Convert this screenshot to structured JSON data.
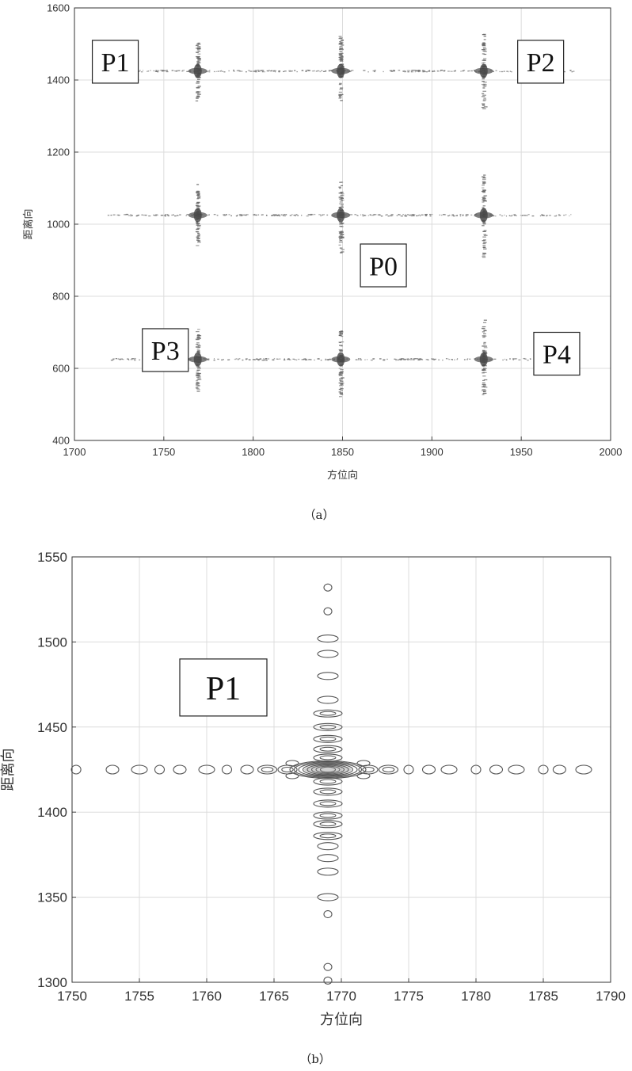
{
  "chart_data": [
    {
      "type": "scatter",
      "panel": "a",
      "caption": "（a）",
      "xlabel": "方位向",
      "ylabel": "距离向",
      "xlim": [
        1700,
        2000
      ],
      "ylim": [
        400,
        1600
      ],
      "xticks": [
        1700,
        1750,
        1800,
        1850,
        1900,
        1950,
        2000
      ],
      "yticks": [
        400,
        600,
        800,
        1000,
        1200,
        1400,
        1600
      ],
      "grid": true,
      "points": [
        {
          "label": "P1",
          "x": 1769,
          "y": 1425
        },
        {
          "label": "",
          "x": 1849,
          "y": 1425
        },
        {
          "label": "P2",
          "x": 1929,
          "y": 1425
        },
        {
          "label": "",
          "x": 1769,
          "y": 1025
        },
        {
          "label": "P0",
          "x": 1849,
          "y": 1025
        },
        {
          "label": "",
          "x": 1929,
          "y": 1025
        },
        {
          "label": "P3",
          "x": 1769,
          "y": 625
        },
        {
          "label": "",
          "x": 1849,
          "y": 625
        },
        {
          "label": "P4",
          "x": 1929,
          "y": 625
        }
      ],
      "annotations": [
        {
          "text": "P1",
          "x": 1710,
          "y": 1510
        },
        {
          "text": "P2",
          "x": 1948,
          "y": 1510
        },
        {
          "text": "P0",
          "x": 1860,
          "y": 945
        },
        {
          "text": "P3",
          "x": 1738,
          "y": 710
        },
        {
          "text": "P4",
          "x": 1957,
          "y": 700
        }
      ]
    },
    {
      "type": "scatter",
      "panel": "b",
      "caption": "（b）",
      "xlabel": "方位向",
      "ylabel": "距离向",
      "xlim": [
        1750,
        1790
      ],
      "ylim": [
        1300,
        1550
      ],
      "xticks": [
        1750,
        1755,
        1760,
        1765,
        1770,
        1775,
        1780,
        1785,
        1790
      ],
      "yticks": [
        1300,
        1350,
        1400,
        1450,
        1500,
        1550
      ],
      "grid": true,
      "points": [
        {
          "label": "P1",
          "x": 1769,
          "y": 1425
        }
      ],
      "annotations": [
        {
          "text": "P1",
          "x": 1758,
          "y": 1490
        }
      ]
    }
  ]
}
